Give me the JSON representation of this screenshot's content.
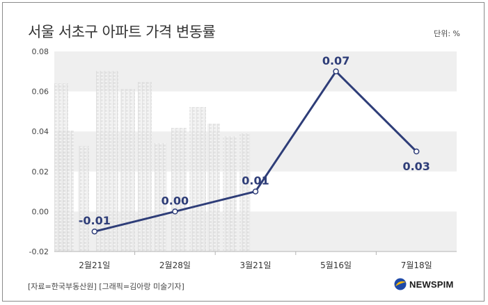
{
  "title": "서울 서초구 아파트 가격 변동률",
  "unit_label": "단위: %",
  "footer": {
    "source": "[자료=한국부동산원] [그래픽=김아랑 미술기자]",
    "logo_text": "NEWSPIM"
  },
  "colors": {
    "line": "#2e3d78",
    "band": "#efefef",
    "logo_blue": "#1f4aa8",
    "logo_yellow": "#f2b90f"
  },
  "chart_data": {
    "type": "line",
    "title": "서울 서초구 아파트 가격 변동률",
    "xlabel": "",
    "ylabel": "",
    "categories": [
      "2월21일",
      "2월28일",
      "3월21일",
      "5월16일",
      "7월18일"
    ],
    "values": [
      -0.01,
      0.0,
      0.01,
      0.07,
      0.03
    ],
    "data_labels": [
      "-0.01",
      "0.00",
      "0.01",
      "0.07",
      "0.03"
    ],
    "ylim": [
      -0.02,
      0.08
    ],
    "yticks": [
      -0.02,
      0.0,
      0.02,
      0.04,
      0.06,
      0.08
    ],
    "ytick_labels": [
      "-0.02",
      "0.00",
      "0.02",
      "0.04",
      "0.06",
      "0.08"
    ],
    "grid": "alternating horizontal bands",
    "legend": "none"
  }
}
